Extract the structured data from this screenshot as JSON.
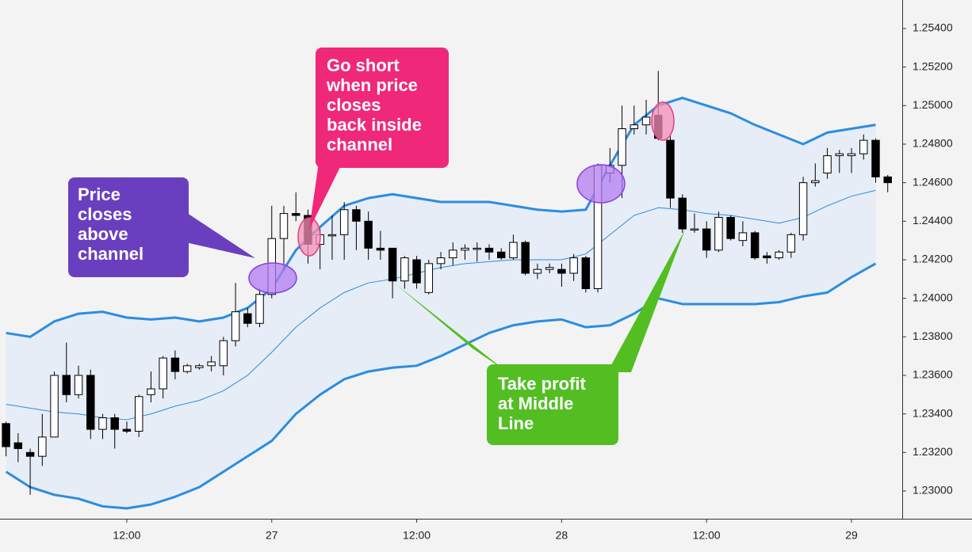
{
  "chart_data": {
    "type": "candlestick",
    "xlim": [
      -0.5,
      74.2
    ],
    "ylim": [
      1.22856,
      1.25548
    ],
    "xticks": [
      {
        "value": 10,
        "label": "12:00"
      },
      {
        "value": 22,
        "label": "27"
      },
      {
        "value": 34,
        "label": "12:00"
      },
      {
        "value": 46,
        "label": "28"
      },
      {
        "value": 58,
        "label": "12:00"
      },
      {
        "value": 70,
        "label": "29"
      }
    ],
    "yticks": [
      {
        "value": 1.254,
        "label": "1.25400"
      },
      {
        "value": 1.252,
        "label": "1.25200"
      },
      {
        "value": 1.25,
        "label": "1.25000"
      },
      {
        "value": 1.248,
        "label": "1.24800"
      },
      {
        "value": 1.246,
        "label": "1.24600"
      },
      {
        "value": 1.244,
        "label": "1.24400"
      },
      {
        "value": 1.242,
        "label": "1.24200"
      },
      {
        "value": 1.24,
        "label": "1.24000"
      },
      {
        "value": 1.238,
        "label": "1.23800"
      },
      {
        "value": 1.236,
        "label": "1.23600"
      },
      {
        "value": 1.234,
        "label": "1.23400"
      },
      {
        "value": 1.232,
        "label": "1.23200"
      },
      {
        "value": 1.23,
        "label": "1.23000"
      }
    ],
    "x": [
      0,
      1,
      2,
      3,
      4,
      5,
      6,
      7,
      8,
      9,
      10,
      11,
      12,
      13,
      14,
      15,
      16,
      17,
      18,
      19,
      20,
      21,
      22,
      23,
      24,
      25,
      26,
      27,
      28,
      29,
      30,
      31,
      32,
      33,
      34,
      35,
      36,
      37,
      38,
      39,
      40,
      41,
      42,
      43,
      44,
      45,
      46,
      47,
      48,
      49,
      50,
      51,
      52,
      53,
      54,
      55,
      56,
      57,
      58,
      59,
      60,
      61,
      62,
      63,
      64,
      65,
      66,
      67,
      68,
      69,
      70,
      71,
      72,
      73
    ],
    "open": [
      1.2335,
      1.2325,
      1.232,
      1.2318,
      1.2328,
      1.236,
      1.235,
      1.236,
      1.2332,
      1.2338,
      1.2332,
      1.2331,
      1.235,
      1.2353,
      1.2369,
      1.2362,
      1.2364,
      1.2365,
      1.2365,
      1.2378,
      1.2392,
      1.2387,
      1.2402,
      1.2431,
      1.2444,
      1.2443,
      1.2428,
      1.2433,
      1.2433,
      1.2446,
      1.244,
      1.2426,
      1.2426,
      1.2409,
      1.242,
      1.2403,
      1.2418,
      1.2421,
      1.2425,
      1.2426,
      1.2426,
      1.2424,
      1.2421,
      1.2429,
      1.2413,
      1.2415,
      1.2415,
      1.2413,
      1.2421,
      1.2405,
      1.2465,
      1.2469,
      1.2488,
      1.249,
      1.2495,
      1.2482,
      1.2452,
      1.2436,
      1.2436,
      1.2425,
      1.2442,
      1.243,
      1.2434,
      1.2422,
      1.2421,
      1.2424,
      1.2433,
      1.246,
      1.2465,
      1.2474,
      1.2474,
      1.2475,
      1.2482,
      1.2463
    ],
    "high": [
      1.2336,
      1.233,
      1.2322,
      1.234,
      1.2362,
      1.2377,
      1.2365,
      1.2363,
      1.234,
      1.234,
      1.2336,
      1.235,
      1.2362,
      1.237,
      1.2373,
      1.2366,
      1.2366,
      1.237,
      1.238,
      1.2408,
      1.2395,
      1.2405,
      1.2448,
      1.2448,
      1.2455,
      1.2446,
      1.2436,
      1.2443,
      1.245,
      1.2448,
      1.2445,
      1.2435,
      1.2426,
      1.2422,
      1.2422,
      1.242,
      1.2424,
      1.2429,
      1.2428,
      1.2429,
      1.2428,
      1.2426,
      1.2433,
      1.243,
      1.2418,
      1.2418,
      1.2418,
      1.2423,
      1.2422,
      1.247,
      1.2478,
      1.25,
      1.25,
      1.2503,
      1.2518,
      1.2484,
      1.2454,
      1.2444,
      1.244,
      1.2445,
      1.2443,
      1.244,
      1.2435,
      1.2424,
      1.2425,
      1.2434,
      1.2463,
      1.247,
      1.2478,
      1.2477,
      1.2478,
      1.2485,
      1.2483,
      1.2464
    ],
    "low": [
      1.2318,
      1.2315,
      1.2298,
      1.2313,
      1.2328,
      1.2346,
      1.2348,
      1.2327,
      1.2327,
      1.2322,
      1.233,
      1.2328,
      1.2346,
      1.2348,
      1.2358,
      1.2361,
      1.2363,
      1.2362,
      1.236,
      1.2375,
      1.2385,
      1.2385,
      1.24,
      1.2415,
      1.244,
      1.2418,
      1.2415,
      1.242,
      1.242,
      1.2425,
      1.242,
      1.242,
      1.24,
      1.2405,
      1.2405,
      1.2402,
      1.2415,
      1.2417,
      1.242,
      1.2419,
      1.242,
      1.242,
      1.242,
      1.2412,
      1.241,
      1.2413,
      1.2406,
      1.2409,
      1.2403,
      1.2403,
      1.246,
      1.2452,
      1.2485,
      1.2485,
      1.2482,
      1.2447,
      1.2434,
      1.2434,
      1.2421,
      1.2424,
      1.243,
      1.2427,
      1.242,
      1.2418,
      1.242,
      1.2421,
      1.243,
      1.2458,
      1.2462,
      1.2465,
      1.2465,
      1.2472,
      1.246,
      1.2455
    ],
    "close": [
      1.2323,
      1.2322,
      1.2318,
      1.2328,
      1.236,
      1.235,
      1.236,
      1.2332,
      1.2338,
      1.2332,
      1.2331,
      1.2349,
      1.2353,
      1.2369,
      1.2362,
      1.2365,
      1.2365,
      1.2367,
      1.2378,
      1.2393,
      1.2387,
      1.2402,
      1.2431,
      1.2444,
      1.2443,
      1.2428,
      1.2433,
      1.2433,
      1.2446,
      1.244,
      1.2426,
      1.2425,
      1.2409,
      1.2421,
      1.2408,
      1.2418,
      1.2421,
      1.2425,
      1.2426,
      1.2426,
      1.2424,
      1.2421,
      1.2429,
      1.2413,
      1.2415,
      1.2416,
      1.2413,
      1.2421,
      1.2405,
      1.2469,
      1.2469,
      1.2488,
      1.249,
      1.2494,
      1.2483,
      1.2452,
      1.2436,
      1.2436,
      1.2425,
      1.2442,
      1.2431,
      1.2434,
      1.2421,
      1.2421,
      1.2424,
      1.2433,
      1.246,
      1.2461,
      1.2474,
      1.2475,
      1.2475,
      1.2482,
      1.2463,
      1.246
    ],
    "band_x": [
      0,
      2,
      4,
      6,
      8,
      10,
      12,
      14,
      16,
      18,
      20,
      22,
      24,
      26,
      28,
      30,
      32,
      34,
      36,
      38,
      40,
      42,
      44,
      46,
      48,
      50,
      52,
      54,
      56,
      58,
      60,
      62,
      64,
      66,
      68,
      70,
      72
    ],
    "bands": [
      {
        "color": "#2b8de0",
        "width": 3,
        "values": [
          1.2382,
          1.238,
          1.2388,
          1.2392,
          1.2393,
          1.239,
          1.2389,
          1.239,
          1.2388,
          1.239,
          1.2395,
          1.2405,
          1.2425,
          1.2437,
          1.2448,
          1.2452,
          1.2454,
          1.2452,
          1.245,
          1.245,
          1.245,
          1.2448,
          1.2446,
          1.2445,
          1.2446,
          1.2469,
          1.249,
          1.25,
          1.2504,
          1.25,
          1.2496,
          1.249,
          1.2485,
          1.248,
          1.2486,
          1.2488,
          1.249
        ]
      },
      {
        "color": "#2b8de0",
        "width": 1,
        "values": [
          1.2345,
          1.2343,
          1.2341,
          1.234,
          1.2338,
          1.2337,
          1.234,
          1.2344,
          1.2347,
          1.2352,
          1.236,
          1.2372,
          1.2385,
          1.2395,
          1.2403,
          1.2408,
          1.241,
          1.2413,
          1.2416,
          1.2418,
          1.2419,
          1.242,
          1.242,
          1.242,
          1.2423,
          1.2433,
          1.2443,
          1.2447,
          1.2446,
          1.2444,
          1.2443,
          1.2441,
          1.2439,
          1.2442,
          1.2448,
          1.2453,
          1.2456
        ]
      },
      {
        "color": "#2b8de0",
        "width": 3,
        "values": [
          1.231,
          1.2302,
          1.2298,
          1.2296,
          1.2292,
          1.2291,
          1.2293,
          1.2297,
          1.2302,
          1.231,
          1.2318,
          1.2326,
          1.234,
          1.235,
          1.2358,
          1.2362,
          1.2364,
          1.2365,
          1.237,
          1.2376,
          1.2382,
          1.2386,
          1.2388,
          1.2389,
          1.2385,
          1.2386,
          1.2392,
          1.24,
          1.2397,
          1.2397,
          1.2397,
          1.2397,
          1.2398,
          1.2401,
          1.2403,
          1.2411,
          1.2418
        ]
      }
    ],
    "band_fill": "#e6edf6",
    "annotations": [
      {
        "lines": [
          "Price",
          "closes",
          "above",
          "channel"
        ],
        "color": "#6a3fbf"
      },
      {
        "lines": [
          "Go short",
          "when price",
          "closes",
          "back inside",
          "channel"
        ],
        "color": "#f0287a"
      },
      {
        "lines": [
          "Take profit",
          "at Middle",
          "Line"
        ],
        "color": "#52be22"
      }
    ]
  }
}
